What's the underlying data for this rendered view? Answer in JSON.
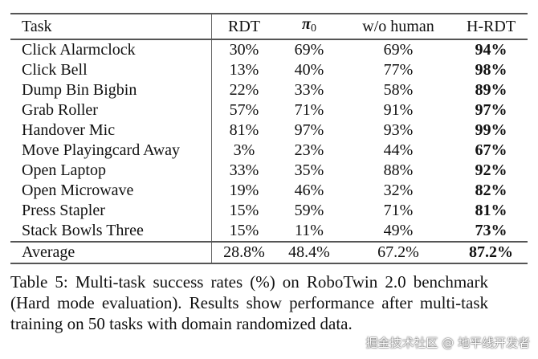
{
  "table": {
    "headers": {
      "task": "Task",
      "rdt": "RDT",
      "pi_symbol": "π",
      "pi_sub": "0",
      "wo_human": "w/o human",
      "hrdt": "H-RDT"
    },
    "rows": [
      {
        "task": "Click Alarmclock",
        "rdt": "30%",
        "pi0": "69%",
        "wo_human": "69%",
        "hrdt": "94%"
      },
      {
        "task": "Click Bell",
        "rdt": "13%",
        "pi0": "40%",
        "wo_human": "77%",
        "hrdt": "98%"
      },
      {
        "task": "Dump Bin Bigbin",
        "rdt": "22%",
        "pi0": "33%",
        "wo_human": "58%",
        "hrdt": "89%"
      },
      {
        "task": "Grab Roller",
        "rdt": "57%",
        "pi0": "71%",
        "wo_human": "91%",
        "hrdt": "97%"
      },
      {
        "task": "Handover Mic",
        "rdt": "81%",
        "pi0": "97%",
        "wo_human": "93%",
        "hrdt": "99%"
      },
      {
        "task": "Move Playingcard Away",
        "rdt": "3%",
        "pi0": "23%",
        "wo_human": "44%",
        "hrdt": "67%"
      },
      {
        "task": "Open Laptop",
        "rdt": "33%",
        "pi0": "35%",
        "wo_human": "88%",
        "hrdt": "92%"
      },
      {
        "task": "Open Microwave",
        "rdt": "19%",
        "pi0": "46%",
        "wo_human": "32%",
        "hrdt": "82%"
      },
      {
        "task": "Press Stapler",
        "rdt": "15%",
        "pi0": "59%",
        "wo_human": "71%",
        "hrdt": "81%"
      },
      {
        "task": "Stack Bowls Three",
        "rdt": "15%",
        "pi0": "11%",
        "wo_human": "49%",
        "hrdt": "73%"
      }
    ],
    "average": {
      "task": "Average",
      "rdt": "28.8%",
      "pi0": "48.4%",
      "wo_human": "67.2%",
      "hrdt": "87.2%"
    }
  },
  "caption": "Table 5: Multi-task success rates (%) on RoboTwin 2.0 benchmark (Hard mode evaluation). Results show performance after multi-task training on 50 tasks with domain randomized data.",
  "watermark": "掘金技术社区 @ 地平线开发者"
}
